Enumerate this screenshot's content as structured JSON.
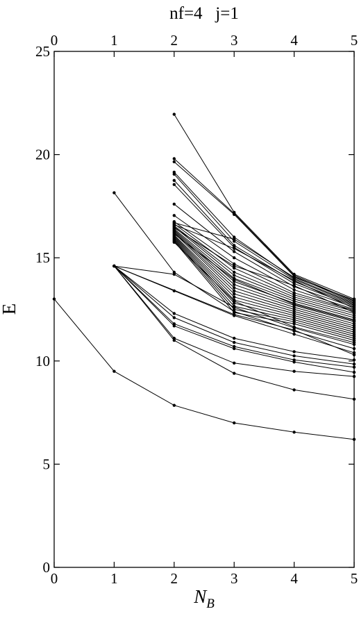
{
  "chart_data": {
    "type": "line",
    "title": "nf=4   j=1",
    "xlabel": "N",
    "xlabel_sub": "B",
    "ylabel": "E",
    "xlim": [
      0,
      5
    ],
    "ylim": [
      0,
      25
    ],
    "xticks": [
      "0",
      "1",
      "2",
      "3",
      "4",
      "5"
    ],
    "yticks": [
      "0",
      "5",
      "10",
      "15",
      "20",
      "25"
    ],
    "grid": false,
    "series": [
      {
        "x": [
          0,
          1,
          2,
          3,
          4,
          5
        ],
        "values": [
          13.0,
          9.5,
          7.85,
          7.0,
          6.55,
          6.2
        ]
      },
      {
        "x": [
          1,
          2,
          3,
          4,
          5
        ],
        "values": [
          14.6,
          11.0,
          9.4,
          8.6,
          8.15
        ]
      },
      {
        "x": [
          1,
          2,
          3,
          4,
          5
        ],
        "values": [
          14.6,
          11.1,
          9.9,
          9.5,
          9.25
        ]
      },
      {
        "x": [
          1,
          2,
          3,
          4,
          5
        ],
        "values": [
          14.6,
          11.7,
          10.6,
          9.95,
          9.45
        ]
      },
      {
        "x": [
          1,
          2,
          3,
          4,
          5
        ],
        "values": [
          14.6,
          11.8,
          10.7,
          10.05,
          9.7
        ]
      },
      {
        "x": [
          1,
          2,
          3,
          4,
          5
        ],
        "values": [
          14.6,
          12.1,
          10.9,
          10.25,
          9.85
        ]
      },
      {
        "x": [
          1,
          2,
          3,
          4,
          5
        ],
        "values": [
          14.6,
          12.3,
          11.1,
          10.45,
          10.05
        ]
      },
      {
        "x": [
          1,
          2,
          3,
          4,
          5
        ],
        "values": [
          14.6,
          13.4,
          12.2,
          11.3,
          10.4
        ]
      },
      {
        "x": [
          1,
          2,
          3,
          4,
          5
        ],
        "values": [
          14.6,
          14.2,
          12.6,
          11.6,
          10.8
        ]
      },
      {
        "x": [
          1,
          2,
          3,
          4,
          5
        ],
        "values": [
          18.15,
          14.3,
          12.4,
          11.45,
          10.6
        ]
      },
      {
        "x": [
          1,
          3,
          4,
          5
        ],
        "values": [
          14.6,
          12.25,
          11.5,
          10.3
        ]
      },
      {
        "x": [
          2,
          3,
          4,
          5
        ],
        "values": [
          21.95,
          17.2,
          14.2,
          13.0
        ]
      },
      {
        "x": [
          2,
          3,
          4,
          5
        ],
        "values": [
          19.8,
          17.15,
          14.15,
          12.9
        ]
      },
      {
        "x": [
          2,
          3,
          4,
          5
        ],
        "values": [
          19.65,
          17.1,
          14.1,
          12.85
        ]
      },
      {
        "x": [
          2,
          3,
          4,
          5
        ],
        "values": [
          19.15,
          16.0,
          14.0,
          12.8
        ]
      },
      {
        "x": [
          2,
          3,
          4,
          5
        ],
        "values": [
          19.05,
          15.8,
          13.95,
          12.75
        ]
      },
      {
        "x": [
          2,
          3,
          4,
          5
        ],
        "values": [
          18.75,
          15.6,
          13.85,
          12.7
        ]
      },
      {
        "x": [
          2,
          3,
          4,
          5
        ],
        "values": [
          18.55,
          15.5,
          13.75,
          12.65
        ]
      },
      {
        "x": [
          2,
          3,
          4,
          5
        ],
        "values": [
          17.6,
          15.3,
          13.6,
          12.6
        ]
      },
      {
        "x": [
          2,
          3,
          4,
          5
        ],
        "values": [
          17.05,
          15.0,
          13.45,
          12.5
        ]
      },
      {
        "x": [
          2,
          3,
          4,
          5
        ],
        "values": [
          16.75,
          14.7,
          13.3,
          12.45
        ]
      },
      {
        "x": [
          2,
          3,
          4,
          5
        ],
        "values": [
          16.65,
          14.5,
          13.2,
          12.4
        ]
      },
      {
        "x": [
          2,
          3,
          4,
          5
        ],
        "values": [
          16.55,
          14.3,
          13.1,
          12.3
        ]
      },
      {
        "x": [
          2,
          3,
          4,
          5
        ],
        "values": [
          16.5,
          14.15,
          13.0,
          12.2
        ]
      },
      {
        "x": [
          2,
          3,
          4,
          5
        ],
        "values": [
          16.4,
          14.0,
          12.9,
          12.1
        ]
      },
      {
        "x": [
          2,
          3,
          4,
          5
        ],
        "values": [
          16.35,
          13.85,
          12.8,
          12.0
        ]
      },
      {
        "x": [
          2,
          3,
          4,
          5
        ],
        "values": [
          16.3,
          13.7,
          12.7,
          11.9
        ]
      },
      {
        "x": [
          2,
          3,
          4,
          5
        ],
        "values": [
          16.25,
          13.55,
          12.6,
          11.8
        ]
      },
      {
        "x": [
          2,
          3,
          4,
          5
        ],
        "values": [
          16.2,
          13.4,
          12.5,
          11.7
        ]
      },
      {
        "x": [
          2,
          3,
          4,
          5
        ],
        "values": [
          16.1,
          13.25,
          12.4,
          11.6
        ]
      },
      {
        "x": [
          2,
          3,
          4,
          5
        ],
        "values": [
          16.05,
          13.1,
          12.3,
          11.5
        ]
      },
      {
        "x": [
          2,
          3,
          4,
          5
        ],
        "values": [
          16.0,
          12.95,
          12.2,
          11.4
        ]
      },
      {
        "x": [
          2,
          3,
          4,
          5
        ],
        "values": [
          15.95,
          12.8,
          12.1,
          11.3
        ]
      },
      {
        "x": [
          2,
          3,
          4,
          5
        ],
        "values": [
          15.9,
          12.65,
          12.0,
          11.2
        ]
      },
      {
        "x": [
          2,
          3,
          4,
          5
        ],
        "values": [
          15.85,
          12.5,
          11.9,
          11.1
        ]
      },
      {
        "x": [
          2,
          3,
          4,
          5
        ],
        "values": [
          15.8,
          12.35,
          11.8,
          11.0
        ]
      },
      {
        "x": [
          2,
          3,
          4,
          5
        ],
        "values": [
          16.7,
          15.9,
          14.05,
          12.95
        ]
      },
      {
        "x": [
          2,
          3,
          4,
          5
        ],
        "values": [
          16.6,
          15.45,
          13.9,
          12.55
        ]
      },
      {
        "x": [
          2,
          3,
          4,
          5
        ],
        "values": [
          16.45,
          14.6,
          13.65,
          12.35
        ]
      },
      {
        "x": [
          2,
          3,
          4,
          5
        ],
        "values": [
          16.15,
          13.95,
          12.75,
          11.95
        ]
      },
      {
        "x": [
          2,
          3,
          4,
          5
        ],
        "values": [
          15.75,
          12.9,
          11.65,
          10.9
        ]
      }
    ]
  }
}
